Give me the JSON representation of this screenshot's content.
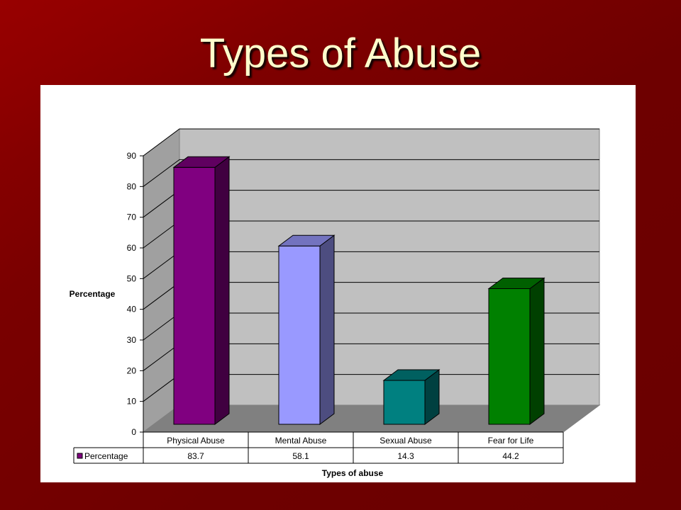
{
  "slide": {
    "title": "Types of Abuse"
  },
  "chart_data": {
    "type": "bar",
    "categories": [
      "Physical Abuse",
      "Mental Abuse",
      "Sexual Abuse",
      "Fear for Life"
    ],
    "series": [
      {
        "name": "Percentage",
        "values": [
          83.7,
          58.1,
          14.3,
          44.2
        ]
      }
    ],
    "value_labels": [
      "83.7",
      "58.1",
      "14.3",
      "44.2"
    ],
    "bar_colors": [
      "#800080",
      "#9999ff",
      "#008080",
      "#008000"
    ],
    "ylabel": "Percentage",
    "xlabel": "Types of abuse",
    "ylim": [
      0,
      90
    ],
    "yticks": [
      "0",
      "10",
      "20",
      "30",
      "40",
      "50",
      "60",
      "70",
      "80",
      "90"
    ],
    "grid": true,
    "legend": "data-table",
    "style": "3d"
  }
}
